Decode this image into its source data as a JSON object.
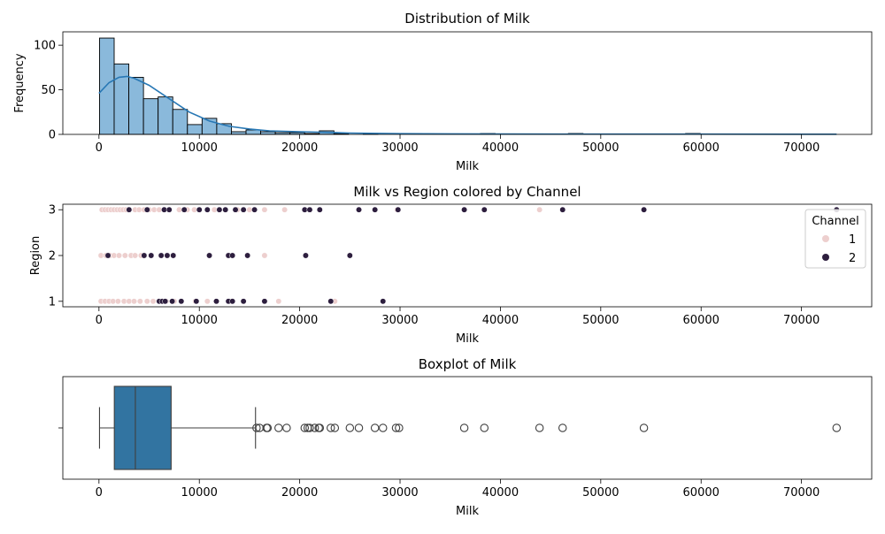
{
  "chart_data": [
    {
      "type": "histogram",
      "title": "Distribution of Milk",
      "xlabel": "Milk",
      "ylabel": "Frequency",
      "xlim": [
        -3600,
        77000
      ],
      "ylim": [
        0,
        115
      ],
      "xticks": [
        0,
        10000,
        20000,
        30000,
        40000,
        50000,
        60000,
        70000
      ],
      "yticks": [
        0,
        50,
        100
      ],
      "bin_width": 1460,
      "bin_start": 55,
      "counts": [
        108,
        79,
        64,
        40,
        42,
        28,
        11,
        18,
        12,
        3,
        5,
        3,
        2,
        2,
        1,
        4,
        1,
        0,
        1,
        0,
        0,
        0,
        0,
        0,
        0,
        0,
        1,
        0,
        0,
        0,
        0,
        0,
        1,
        0,
        0,
        0,
        0,
        0,
        0,
        0,
        1,
        0,
        0,
        0,
        0,
        0,
        0,
        0,
        0,
        0
      ],
      "kde": [
        [
          0,
          46
        ],
        [
          1000,
          58
        ],
        [
          2000,
          64
        ],
        [
          2800,
          65
        ],
        [
          3500,
          63
        ],
        [
          5000,
          55
        ],
        [
          7000,
          40
        ],
        [
          9000,
          25
        ],
        [
          11000,
          15
        ],
        [
          13000,
          9
        ],
        [
          15000,
          6
        ],
        [
          17000,
          4
        ],
        [
          20000,
          3
        ],
        [
          22000,
          2.5
        ],
        [
          25000,
          1.5
        ],
        [
          30000,
          0.8
        ],
        [
          40000,
          0.4
        ],
        [
          50000,
          0.3
        ],
        [
          60000,
          0.3
        ],
        [
          73500,
          0.2
        ]
      ],
      "colors": {
        "bar_fill": "#8ab9db",
        "bar_edge": "#000000",
        "kde": "#2878b5"
      }
    },
    {
      "type": "scatter",
      "title": "Milk vs Region colored by Channel",
      "xlabel": "Milk",
      "ylabel": "Region",
      "xlim": [
        -3600,
        77000
      ],
      "ylim": [
        0.88,
        3.12
      ],
      "xticks": [
        0,
        10000,
        20000,
        30000,
        40000,
        50000,
        60000,
        70000
      ],
      "yticks": [
        1,
        2,
        3
      ],
      "legend": {
        "title": "Channel",
        "entries": [
          "1",
          "2"
        ],
        "position": "top-right"
      },
      "series": [
        {
          "name": "1",
          "color": "#edcfce",
          "points": [
            [
              300,
              3
            ],
            [
              600,
              3
            ],
            [
              900,
              3
            ],
            [
              1200,
              3
            ],
            [
              1500,
              3
            ],
            [
              1800,
              3
            ],
            [
              2100,
              3
            ],
            [
              2400,
              3
            ],
            [
              2700,
              3
            ],
            [
              3000,
              3
            ],
            [
              3600,
              3
            ],
            [
              4000,
              3
            ],
            [
              4500,
              3
            ],
            [
              5000,
              3
            ],
            [
              5500,
              3
            ],
            [
              6000,
              3
            ],
            [
              6500,
              3
            ],
            [
              7000,
              3
            ],
            [
              8000,
              3
            ],
            [
              8800,
              3
            ],
            [
              9500,
              3
            ],
            [
              11500,
              3
            ],
            [
              13800,
              3
            ],
            [
              15000,
              3
            ],
            [
              16500,
              3
            ],
            [
              18500,
              3
            ],
            [
              29700,
              3
            ],
            [
              43900,
              3
            ],
            [
              200,
              2
            ],
            [
              700,
              2
            ],
            [
              1100,
              2
            ],
            [
              1500,
              2
            ],
            [
              2000,
              2
            ],
            [
              2600,
              2
            ],
            [
              3200,
              2
            ],
            [
              3600,
              2
            ],
            [
              4200,
              2
            ],
            [
              16500,
              2
            ],
            [
              200,
              1
            ],
            [
              600,
              1
            ],
            [
              1000,
              1
            ],
            [
              1400,
              1
            ],
            [
              1900,
              1
            ],
            [
              2500,
              1
            ],
            [
              3000,
              1
            ],
            [
              3500,
              1
            ],
            [
              4100,
              1
            ],
            [
              4800,
              1
            ],
            [
              5400,
              1
            ],
            [
              6000,
              1
            ],
            [
              6700,
              1
            ],
            [
              7500,
              1
            ],
            [
              8200,
              1
            ],
            [
              9600,
              1
            ],
            [
              10800,
              1
            ],
            [
              11700,
              1
            ],
            [
              13100,
              1
            ],
            [
              17900,
              1
            ],
            [
              23500,
              1
            ]
          ]
        },
        {
          "name": "2",
          "color": "#2d1e3e",
          "points": [
            [
              3000,
              3
            ],
            [
              4800,
              3
            ],
            [
              6500,
              3
            ],
            [
              7000,
              3
            ],
            [
              8500,
              3
            ],
            [
              10000,
              3
            ],
            [
              10800,
              3
            ],
            [
              12000,
              3
            ],
            [
              12600,
              3
            ],
            [
              13600,
              3
            ],
            [
              14400,
              3
            ],
            [
              15500,
              3
            ],
            [
              20500,
              3
            ],
            [
              21000,
              3
            ],
            [
              22000,
              3
            ],
            [
              25900,
              3
            ],
            [
              27500,
              3
            ],
            [
              29800,
              3
            ],
            [
              36400,
              3
            ],
            [
              38400,
              3
            ],
            [
              46200,
              3
            ],
            [
              54300,
              3
            ],
            [
              73500,
              3
            ],
            [
              900,
              2
            ],
            [
              4500,
              2
            ],
            [
              5200,
              2
            ],
            [
              6200,
              2
            ],
            [
              6800,
              2
            ],
            [
              7400,
              2
            ],
            [
              11000,
              2
            ],
            [
              12900,
              2
            ],
            [
              13300,
              2
            ],
            [
              14800,
              2
            ],
            [
              20600,
              2
            ],
            [
              25000,
              2
            ],
            [
              6000,
              1
            ],
            [
              6300,
              1
            ],
            [
              6600,
              1
            ],
            [
              7300,
              1
            ],
            [
              8200,
              1
            ],
            [
              9700,
              1
            ],
            [
              11700,
              1
            ],
            [
              12900,
              1
            ],
            [
              13300,
              1
            ],
            [
              14400,
              1
            ],
            [
              16500,
              1
            ],
            [
              23100,
              1
            ],
            [
              28300,
              1
            ]
          ]
        }
      ]
    },
    {
      "type": "box",
      "title": "Boxplot of Milk",
      "xlabel": "Milk",
      "xlim": [
        -3600,
        77000
      ],
      "xticks": [
        0,
        10000,
        20000,
        30000,
        40000,
        50000,
        60000,
        70000
      ],
      "min": 55,
      "q1": 1530,
      "median": 3627,
      "q3": 7190,
      "whisker_high": 15600,
      "outliers": [
        15700,
        16000,
        16700,
        16800,
        17900,
        18700,
        20500,
        20800,
        21000,
        21500,
        21900,
        22000,
        23100,
        23500,
        25000,
        25900,
        27500,
        28300,
        29600,
        29900,
        36400,
        38400,
        43900,
        46200,
        54300,
        73500
      ],
      "colors": {
        "box_fill": "#3274a1",
        "line": "#3f3f3f"
      }
    }
  ]
}
